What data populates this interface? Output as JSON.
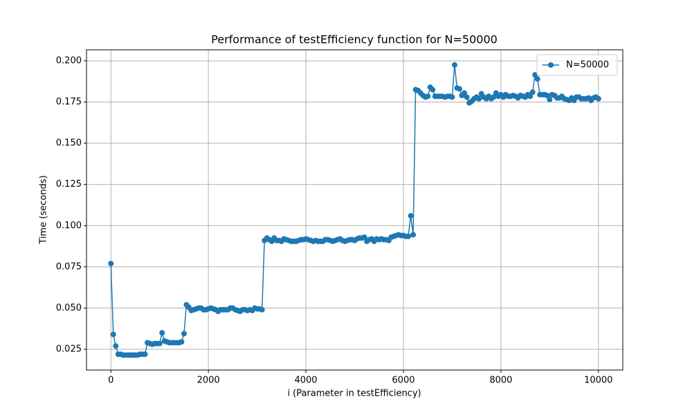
{
  "chart_data": {
    "type": "line",
    "title": "Performance of testEfficiency function for N=50000",
    "x_label": "i (Parameter in testEfficiency)",
    "y_label": "Time (seconds)",
    "legend": "upper right",
    "grid": true,
    "marker": "circle",
    "xlim": [
      -500,
      10500
    ],
    "ylim": [
      0.0124,
      0.2067
    ],
    "xticks": [
      0,
      2000,
      4000,
      6000,
      8000,
      10000
    ],
    "yticks": [
      0.025,
      {
        "value": 0.05,
        "label": "0.050"
      },
      0.075,
      {
        "value": 0.1,
        "label": "0.100"
      },
      0.125,
      {
        "value": 0.15,
        "label": "0.150"
      },
      0.175,
      {
        "value": 0.2,
        "label": "0.200"
      }
    ],
    "x": [
      0,
      50,
      100,
      150,
      200,
      250,
      300,
      350,
      400,
      450,
      500,
      550,
      600,
      650,
      700,
      750,
      800,
      850,
      900,
      950,
      1000,
      1050,
      1100,
      1150,
      1200,
      1250,
      1300,
      1350,
      1400,
      1450,
      1500,
      1550,
      1600,
      1650,
      1700,
      1750,
      1800,
      1850,
      1900,
      1950,
      2000,
      2050,
      2100,
      2150,
      2200,
      2250,
      2300,
      2350,
      2400,
      2450,
      2500,
      2550,
      2600,
      2650,
      2700,
      2750,
      2800,
      2850,
      2900,
      2950,
      3000,
      3050,
      3100,
      3150,
      3200,
      3250,
      3300,
      3350,
      3400,
      3450,
      3500,
      3550,
      3600,
      3650,
      3700,
      3750,
      3800,
      3850,
      3900,
      3950,
      4000,
      4050,
      4100,
      4150,
      4200,
      4250,
      4300,
      4350,
      4400,
      4450,
      4500,
      4550,
      4600,
      4650,
      4700,
      4750,
      4800,
      4850,
      4900,
      4950,
      5000,
      5050,
      5100,
      5150,
      5200,
      5250,
      5300,
      5350,
      5400,
      5450,
      5500,
      5550,
      5600,
      5650,
      5700,
      5750,
      5800,
      5850,
      5900,
      5950,
      6000,
      6050,
      6100,
      6150,
      6200,
      6250,
      6300,
      6350,
      6400,
      6450,
      6500,
      6550,
      6600,
      6650,
      6700,
      6750,
      6800,
      6850,
      6900,
      6950,
      7000,
      7050,
      7100,
      7150,
      7200,
      7250,
      7300,
      7350,
      7400,
      7450,
      7500,
      7550,
      7600,
      7650,
      7700,
      7750,
      7800,
      7850,
      7900,
      7950,
      8000,
      8050,
      8100,
      8150,
      8200,
      8250,
      8300,
      8350,
      8400,
      8450,
      8500,
      8550,
      8600,
      8650,
      8700,
      8750,
      8800,
      8850,
      8900,
      8950,
      9000,
      9050,
      9100,
      9150,
      9200,
      9250,
      9300,
      9350,
      9400,
      9450,
      9500,
      9550,
      9600,
      9650,
      9700,
      9750,
      9800,
      9850,
      9900,
      9950,
      10000
    ],
    "series": [
      {
        "name": "N=50000",
        "color": "#1f77b4",
        "values": [
          0.077,
          0.034,
          0.027,
          0.022,
          0.022,
          0.0215,
          0.0215,
          0.0215,
          0.0215,
          0.0215,
          0.0215,
          0.0215,
          0.022,
          0.022,
          0.022,
          0.029,
          0.0285,
          0.028,
          0.0285,
          0.0285,
          0.0285,
          0.035,
          0.03,
          0.0295,
          0.029,
          0.029,
          0.029,
          0.029,
          0.029,
          0.0295,
          0.0345,
          0.052,
          0.0505,
          0.0485,
          0.049,
          0.0495,
          0.05,
          0.05,
          0.049,
          0.049,
          0.0495,
          0.05,
          0.0495,
          0.049,
          0.048,
          0.049,
          0.049,
          0.049,
          0.049,
          0.05,
          0.05,
          0.049,
          0.0485,
          0.048,
          0.049,
          0.049,
          0.0485,
          0.049,
          0.0485,
          0.05,
          0.0495,
          0.0495,
          0.049,
          0.091,
          0.0925,
          0.0915,
          0.0905,
          0.0925,
          0.091,
          0.091,
          0.0905,
          0.092,
          0.0915,
          0.091,
          0.0905,
          0.0905,
          0.0905,
          0.091,
          0.0915,
          0.0915,
          0.092,
          0.0915,
          0.091,
          0.0905,
          0.091,
          0.0905,
          0.0905,
          0.0905,
          0.0915,
          0.0915,
          0.091,
          0.0905,
          0.091,
          0.0915,
          0.092,
          0.091,
          0.0905,
          0.091,
          0.0915,
          0.0915,
          0.091,
          0.092,
          0.0925,
          0.0925,
          0.093,
          0.0905,
          0.0915,
          0.092,
          0.0905,
          0.092,
          0.0915,
          0.092,
          0.0915,
          0.0915,
          0.091,
          0.093,
          0.0935,
          0.094,
          0.0945,
          0.094,
          0.094,
          0.0935,
          0.0935,
          0.106,
          0.0945,
          0.1825,
          0.182,
          0.1805,
          0.179,
          0.178,
          0.1785,
          0.184,
          0.1825,
          0.1785,
          0.1785,
          0.1785,
          0.1785,
          0.178,
          0.1785,
          0.1785,
          0.178,
          0.1975,
          0.1835,
          0.183,
          0.179,
          0.1805,
          0.178,
          0.1745,
          0.1755,
          0.177,
          0.178,
          0.177,
          0.18,
          0.178,
          0.177,
          0.1785,
          0.177,
          0.178,
          0.1805,
          0.1785,
          0.1795,
          0.178,
          0.1795,
          0.1785,
          0.1785,
          0.179,
          0.1785,
          0.1775,
          0.179,
          0.1785,
          0.178,
          0.1795,
          0.1785,
          0.181,
          0.1915,
          0.189,
          0.1795,
          0.1795,
          0.1795,
          0.179,
          0.1765,
          0.1795,
          0.179,
          0.1775,
          0.1775,
          0.1785,
          0.177,
          0.1765,
          0.176,
          0.1775,
          0.176,
          0.178,
          0.178,
          0.177,
          0.177,
          0.177,
          0.1775,
          0.176,
          0.1775,
          0.178,
          0.177
        ]
      }
    ]
  }
}
